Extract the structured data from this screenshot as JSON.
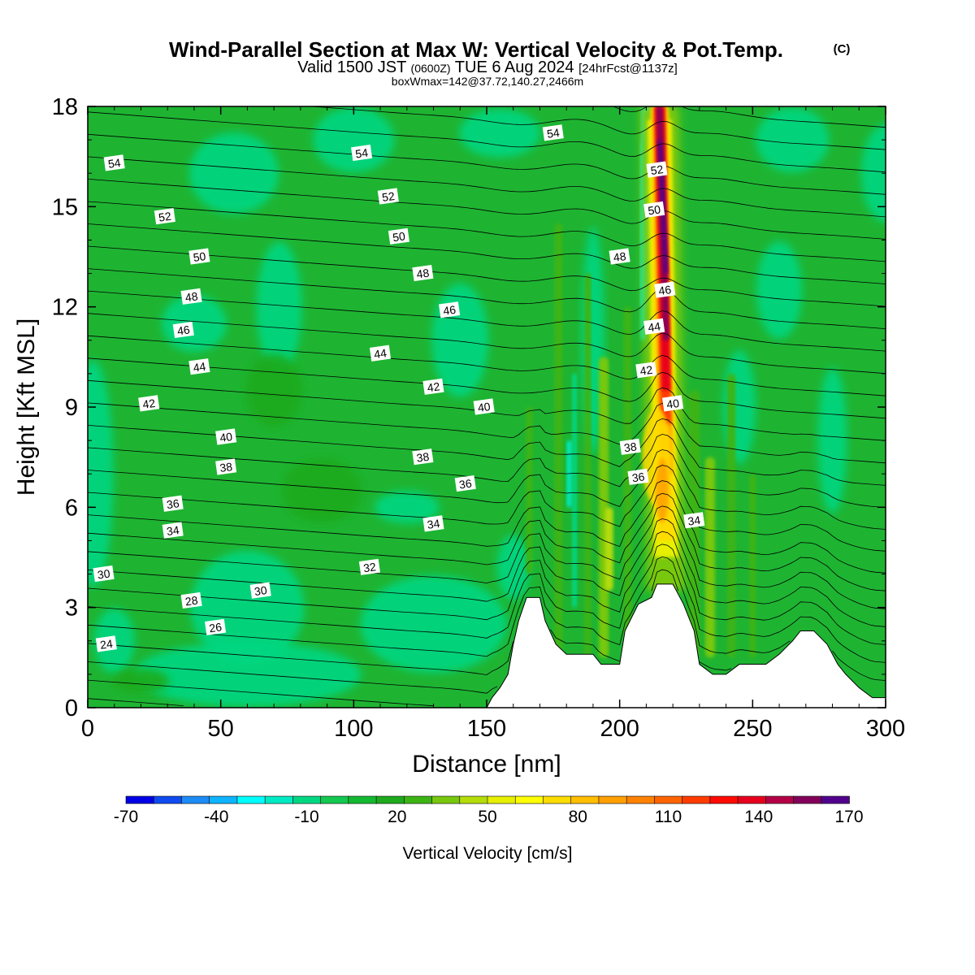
{
  "title": {
    "main": "Wind-Parallel Section at Max W: Vertical Velocity & Pot.Temp.",
    "copyright": "(C)",
    "valid_prefix": "Valid 1500 JST",
    "valid_utc": "(0600Z)",
    "valid_date": "TUE 6 Aug 2024",
    "forecast": "[24hrFcst@1137z]",
    "box_info": "boxWmax=142@37.72,140.27,2466m"
  },
  "chart_data": {
    "type": "heatmap",
    "xlabel": "Distance [nm]",
    "ylabel": "Height [Kft MSL]",
    "xlim": [
      0,
      300
    ],
    "ylim": [
      0,
      18
    ],
    "x_ticks": [
      "0",
      "50",
      "100",
      "150",
      "200",
      "250",
      "300"
    ],
    "y_ticks": [
      "0",
      "3",
      "6",
      "9",
      "12",
      "15",
      "18"
    ],
    "colorbar": {
      "label": "Vertical Velocity [cm/s]",
      "min": -70,
      "max": 170,
      "step": 10,
      "tick_labels": [
        "-70",
        "-40",
        "-10",
        "20",
        "50",
        "80",
        "110",
        "140",
        "170"
      ],
      "colors": [
        "#0000e6",
        "#0f4bf0",
        "#1e8cf5",
        "#0fb4ff",
        "#00ffff",
        "#00ebc4",
        "#00d782",
        "#14c850",
        "#14b932",
        "#1eaa1e",
        "#3cb414",
        "#78c80f",
        "#b4dc0a",
        "#e6f000",
        "#ffff00",
        "#ffdc00",
        "#ffbe00",
        "#ffa000",
        "#ff8200",
        "#ff6400",
        "#ff3c00",
        "#ff0a00",
        "#e6001e",
        "#b40046",
        "#82005a",
        "#50008c"
      ]
    },
    "updraft": {
      "x_center": 216,
      "core_max_cm_s": 142,
      "core_max_location": "37.72,140.27",
      "core_max_height_m": 2466
    },
    "terrain_kft": [
      [
        150,
        0.0
      ],
      [
        152,
        0.3
      ],
      [
        155,
        0.6
      ],
      [
        158,
        1.0
      ],
      [
        160,
        1.9
      ],
      [
        162,
        2.6
      ],
      [
        165,
        3.3
      ],
      [
        170,
        3.3
      ],
      [
        172,
        2.6
      ],
      [
        176,
        1.9
      ],
      [
        180,
        1.6
      ],
      [
        190,
        1.6
      ],
      [
        193,
        1.3
      ],
      [
        200,
        1.3
      ],
      [
        202,
        2.3
      ],
      [
        207,
        3.1
      ],
      [
        212,
        3.3
      ],
      [
        214,
        3.7
      ],
      [
        220,
        3.7
      ],
      [
        224,
        3.1
      ],
      [
        228,
        2.3
      ],
      [
        230,
        1.3
      ],
      [
        235,
        1.0
      ],
      [
        240,
        1.0
      ],
      [
        245,
        1.3
      ],
      [
        255,
        1.3
      ],
      [
        260,
        1.6
      ],
      [
        265,
        2.0
      ],
      [
        268,
        2.3
      ],
      [
        273,
        2.3
      ],
      [
        278,
        1.9
      ],
      [
        282,
        1.3
      ],
      [
        285,
        1.0
      ],
      [
        290,
        0.6
      ],
      [
        295,
        0.3
      ],
      [
        300,
        0.3
      ]
    ],
    "theta_contours": [
      {
        "label": "24",
        "x": 7,
        "y": 1.9
      },
      {
        "label": "26",
        "x": 48,
        "y": 2.4
      },
      {
        "label": "28",
        "x": 39,
        "y": 3.2
      },
      {
        "label": "30",
        "x": 6,
        "y": 4.0
      },
      {
        "label": "30",
        "x": 65,
        "y": 3.5
      },
      {
        "label": "32",
        "x": 106,
        "y": 4.2
      },
      {
        "label": "34",
        "x": 32,
        "y": 5.3
      },
      {
        "label": "34",
        "x": 130,
        "y": 5.5
      },
      {
        "label": "34",
        "x": 228,
        "y": 5.6
      },
      {
        "label": "36",
        "x": 32,
        "y": 6.1
      },
      {
        "label": "36",
        "x": 142,
        "y": 6.7
      },
      {
        "label": "36",
        "x": 207,
        "y": 6.9
      },
      {
        "label": "38",
        "x": 52,
        "y": 7.2
      },
      {
        "label": "38",
        "x": 126,
        "y": 7.5
      },
      {
        "label": "38",
        "x": 204,
        "y": 7.8
      },
      {
        "label": "40",
        "x": 52,
        "y": 8.1
      },
      {
        "label": "40",
        "x": 149,
        "y": 9.0
      },
      {
        "label": "40",
        "x": 220,
        "y": 9.1
      },
      {
        "label": "42",
        "x": 23,
        "y": 9.1
      },
      {
        "label": "42",
        "x": 130,
        "y": 9.6
      },
      {
        "label": "42",
        "x": 210,
        "y": 10.1
      },
      {
        "label": "44",
        "x": 42,
        "y": 10.2
      },
      {
        "label": "44",
        "x": 110,
        "y": 10.6
      },
      {
        "label": "44",
        "x": 213,
        "y": 11.4
      },
      {
        "label": "46",
        "x": 36,
        "y": 11.3
      },
      {
        "label": "46",
        "x": 136,
        "y": 11.9
      },
      {
        "label": "46",
        "x": 217,
        "y": 12.5
      },
      {
        "label": "48",
        "x": 39,
        "y": 12.3
      },
      {
        "label": "48",
        "x": 126,
        "y": 13.0
      },
      {
        "label": "48",
        "x": 200,
        "y": 13.5
      },
      {
        "label": "50",
        "x": 42,
        "y": 13.5
      },
      {
        "label": "50",
        "x": 117,
        "y": 14.1
      },
      {
        "label": "50",
        "x": 213,
        "y": 14.9
      },
      {
        "label": "52",
        "x": 29,
        "y": 14.7
      },
      {
        "label": "52",
        "x": 113,
        "y": 15.3
      },
      {
        "label": "52",
        "x": 214,
        "y": 16.1
      },
      {
        "label": "54",
        "x": 10,
        "y": 16.3
      },
      {
        "label": "54",
        "x": 103,
        "y": 16.6
      },
      {
        "label": "54",
        "x": 175,
        "y": 17.2
      }
    ]
  }
}
